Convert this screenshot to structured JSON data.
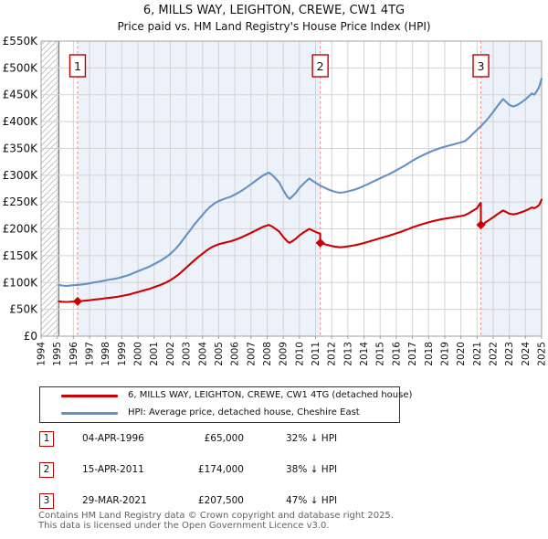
{
  "title": "6, MILLS WAY, LEIGHTON, CREWE, CW1 4TG",
  "subtitle": "Price paid vs. HM Land Registry's House Price Index (HPI)",
  "colors": {
    "property_line": "#cc0000",
    "hpi_line": "#6491c3",
    "sale_dashed_line": "#f09090",
    "shade": "#edf1fa",
    "grid": "#d3d3d3",
    "plot_border": "#a0a0a0",
    "hatch": "#c4c4c4",
    "no_data_divider": "#7a7a7a",
    "marker_box_border": "#bb0000",
    "diamond": "#cc0000",
    "axis_text": "#111111",
    "footer_text": "#636363"
  },
  "chart_data": {
    "type": "line",
    "title": "Price paid vs. HM Land Registry's House Price Index (HPI)",
    "x_axis": {
      "min": 1994,
      "max": 2025,
      "ticks": [
        1994,
        1995,
        1996,
        1997,
        1998,
        1999,
        2000,
        2001,
        2002,
        2003,
        2004,
        2005,
        2006,
        2007,
        2008,
        2009,
        2010,
        2011,
        2012,
        2013,
        2014,
        2015,
        2016,
        2017,
        2018,
        2019,
        2020,
        2021,
        2022,
        2023,
        2024,
        2025
      ]
    },
    "y_axis": {
      "min": 0,
      "max": 550,
      "unit": "GBP thousands",
      "tick_values": [
        0,
        50,
        100,
        150,
        200,
        250,
        300,
        350,
        400,
        450,
        500,
        550
      ],
      "tick_labels": [
        "£0",
        "£50K",
        "£100K",
        "£150K",
        "£200K",
        "£250K",
        "£300K",
        "£350K",
        "£400K",
        "£450K",
        "£500K",
        "£550K"
      ]
    },
    "grid": true,
    "no_data_before": 1995.1,
    "shaded_periods": [
      [
        1996.26,
        2011.29
      ],
      [
        2021.24,
        2025.0
      ]
    ],
    "sales": [
      {
        "label": "1",
        "year": 1996.26,
        "value_k": 65
      },
      {
        "label": "2",
        "year": 2011.29,
        "value_k": 174
      },
      {
        "label": "3",
        "year": 2021.24,
        "value_k": 207.5
      }
    ],
    "series": [
      {
        "name": "6, MILLS WAY, LEIGHTON, CREWE, CW1 4TG (detached house)",
        "color_key": "property_line",
        "points": [
          [
            1995.1,
            64.9
          ],
          [
            1995.3,
            64.2
          ],
          [
            1995.5,
            63.8
          ],
          [
            1995.7,
            63.9
          ],
          [
            1995.9,
            64.4
          ],
          [
            1996.1,
            64.7
          ],
          [
            1996.26,
            65.0
          ],
          [
            1996.5,
            65.6
          ],
          [
            1996.75,
            66.2
          ],
          [
            1997.0,
            67.0
          ],
          [
            1997.25,
            68.1
          ],
          [
            1997.5,
            68.8
          ],
          [
            1997.75,
            69.7
          ],
          [
            1998.0,
            70.8
          ],
          [
            1998.25,
            71.7
          ],
          [
            1998.5,
            72.5
          ],
          [
            1998.75,
            73.6
          ],
          [
            1999.0,
            74.9
          ],
          [
            1999.25,
            76.4
          ],
          [
            1999.5,
            78.0
          ],
          [
            1999.75,
            80.2
          ],
          [
            2000.0,
            82.3
          ],
          [
            2000.25,
            84.4
          ],
          [
            2000.5,
            86.5
          ],
          [
            2000.75,
            88.6
          ],
          [
            2001.0,
            91.2
          ],
          [
            2001.25,
            94.0
          ],
          [
            2001.5,
            96.9
          ],
          [
            2001.75,
            100.2
          ],
          [
            2002.0,
            104.2
          ],
          [
            2002.25,
            109.1
          ],
          [
            2002.5,
            114.6
          ],
          [
            2002.75,
            121.2
          ],
          [
            2003.0,
            128.0
          ],
          [
            2003.25,
            134.8
          ],
          [
            2003.5,
            141.7
          ],
          [
            2003.75,
            147.9
          ],
          [
            2004.0,
            153.8
          ],
          [
            2004.25,
            159.8
          ],
          [
            2004.5,
            164.6
          ],
          [
            2004.75,
            168.4
          ],
          [
            2005.0,
            171.3
          ],
          [
            2005.25,
            173.3
          ],
          [
            2005.5,
            175.2
          ],
          [
            2005.75,
            177.0
          ],
          [
            2006.0,
            179.5
          ],
          [
            2006.25,
            182.2
          ],
          [
            2006.5,
            185.4
          ],
          [
            2006.75,
            189.0
          ],
          [
            2007.0,
            192.6
          ],
          [
            2007.25,
            196.4
          ],
          [
            2007.5,
            200.1
          ],
          [
            2007.75,
            203.8
          ],
          [
            2008.1,
            207.4
          ],
          [
            2008.3,
            204.6
          ],
          [
            2008.5,
            200.4
          ],
          [
            2008.75,
            194.9
          ],
          [
            2009.0,
            185.0
          ],
          [
            2009.25,
            176.7
          ],
          [
            2009.4,
            174.1
          ],
          [
            2009.6,
            178.0
          ],
          [
            2009.8,
            182.2
          ],
          [
            2010.0,
            187.9
          ],
          [
            2010.25,
            193.3
          ],
          [
            2010.5,
            198.0
          ],
          [
            2010.62,
            199.9
          ],
          [
            2010.8,
            197.1
          ],
          [
            2011.0,
            194.5
          ],
          [
            2011.29,
            190.8
          ],
          [
            2011.29,
            174.0
          ],
          [
            2011.5,
            172.2
          ],
          [
            2011.75,
            169.9
          ],
          [
            2012.0,
            168.0
          ],
          [
            2012.25,
            166.7
          ],
          [
            2012.5,
            165.7
          ],
          [
            2012.75,
            166.3
          ],
          [
            2013.0,
            167.3
          ],
          [
            2013.25,
            168.5
          ],
          [
            2013.5,
            169.9
          ],
          [
            2013.75,
            171.7
          ],
          [
            2014.0,
            173.7
          ],
          [
            2014.25,
            175.9
          ],
          [
            2014.5,
            178.1
          ],
          [
            2014.75,
            180.3
          ],
          [
            2015.0,
            182.5
          ],
          [
            2015.25,
            184.7
          ],
          [
            2015.5,
            186.8
          ],
          [
            2015.75,
            189.2
          ],
          [
            2016.0,
            191.7
          ],
          [
            2016.25,
            194.2
          ],
          [
            2016.5,
            196.8
          ],
          [
            2016.75,
            199.8
          ],
          [
            2017.0,
            202.8
          ],
          [
            2017.25,
            205.4
          ],
          [
            2017.5,
            207.8
          ],
          [
            2017.75,
            210.1
          ],
          [
            2018.0,
            212.2
          ],
          [
            2018.25,
            214.3
          ],
          [
            2018.5,
            215.9
          ],
          [
            2018.75,
            217.6
          ],
          [
            2019.0,
            218.9
          ],
          [
            2019.25,
            220.2
          ],
          [
            2019.5,
            221.4
          ],
          [
            2019.75,
            222.8
          ],
          [
            2020.0,
            223.9
          ],
          [
            2020.25,
            225.4
          ],
          [
            2020.5,
            229.3
          ],
          [
            2020.75,
            233.9
          ],
          [
            2021.0,
            238.5
          ],
          [
            2021.12,
            244.2
          ],
          [
            2021.2,
            247.8
          ],
          [
            2021.24,
            248.2
          ],
          [
            2021.24,
            207.5
          ],
          [
            2021.35,
            205.6
          ],
          [
            2021.5,
            211.8
          ],
          [
            2021.75,
            216.4
          ],
          [
            2022.0,
            221.6
          ],
          [
            2022.25,
            227.1
          ],
          [
            2022.5,
            232.1
          ],
          [
            2022.62,
            234.3
          ],
          [
            2022.8,
            231.5
          ],
          [
            2023.0,
            228.4
          ],
          [
            2023.25,
            226.9
          ],
          [
            2023.5,
            228.5
          ],
          [
            2023.75,
            231.1
          ],
          [
            2024.0,
            233.9
          ],
          [
            2024.2,
            236.9
          ],
          [
            2024.4,
            239.9
          ],
          [
            2024.55,
            238.5
          ],
          [
            2024.7,
            241.0
          ],
          [
            2024.85,
            244.6
          ],
          [
            2025.0,
            254.4
          ]
        ]
      },
      {
        "name": "HPI: Average price, detached house, Cheshire East",
        "color_key": "hpi_line",
        "points": [
          [
            1995.1,
            95.5
          ],
          [
            1995.3,
            94.5
          ],
          [
            1995.5,
            93.8
          ],
          [
            1995.7,
            94.0
          ],
          [
            1995.9,
            94.8
          ],
          [
            1996.1,
            95.2
          ],
          [
            1996.26,
            95.6
          ],
          [
            1996.5,
            96.4
          ],
          [
            1996.75,
            97.3
          ],
          [
            1997.0,
            98.5
          ],
          [
            1997.25,
            100.2
          ],
          [
            1997.5,
            101.1
          ],
          [
            1997.75,
            102.5
          ],
          [
            1998.0,
            104.1
          ],
          [
            1998.25,
            105.5
          ],
          [
            1998.5,
            106.6
          ],
          [
            1998.75,
            108.2
          ],
          [
            1999.0,
            110.1
          ],
          [
            1999.25,
            112.3
          ],
          [
            1999.5,
            114.7
          ],
          [
            1999.75,
            118.0
          ],
          [
            2000.0,
            121.1
          ],
          [
            2000.25,
            124.1
          ],
          [
            2000.5,
            127.2
          ],
          [
            2000.75,
            130.3
          ],
          [
            2001.0,
            134.1
          ],
          [
            2001.25,
            138.2
          ],
          [
            2001.5,
            142.5
          ],
          [
            2001.75,
            147.4
          ],
          [
            2002.0,
            153.2
          ],
          [
            2002.25,
            160.4
          ],
          [
            2002.5,
            168.6
          ],
          [
            2002.75,
            178.2
          ],
          [
            2003.0,
            188.3
          ],
          [
            2003.25,
            198.2
          ],
          [
            2003.5,
            208.4
          ],
          [
            2003.75,
            217.5
          ],
          [
            2004.0,
            226.2
          ],
          [
            2004.25,
            235.0
          ],
          [
            2004.5,
            242.0
          ],
          [
            2004.75,
            247.7
          ],
          [
            2005.0,
            251.9
          ],
          [
            2005.25,
            254.9
          ],
          [
            2005.5,
            257.7
          ],
          [
            2005.75,
            260.2
          ],
          [
            2006.0,
            263.9
          ],
          [
            2006.25,
            268.0
          ],
          [
            2006.5,
            272.7
          ],
          [
            2006.75,
            277.9
          ],
          [
            2007.0,
            283.2
          ],
          [
            2007.25,
            288.8
          ],
          [
            2007.5,
            294.3
          ],
          [
            2007.75,
            299.7
          ],
          [
            2008.1,
            305.0
          ],
          [
            2008.3,
            300.9
          ],
          [
            2008.5,
            294.7
          ],
          [
            2008.75,
            286.6
          ],
          [
            2009.0,
            272.0
          ],
          [
            2009.25,
            259.9
          ],
          [
            2009.4,
            256.0
          ],
          [
            2009.6,
            261.8
          ],
          [
            2009.8,
            268.0
          ],
          [
            2010.0,
            276.3
          ],
          [
            2010.25,
            284.2
          ],
          [
            2010.5,
            291.1
          ],
          [
            2010.62,
            293.9
          ],
          [
            2010.8,
            289.8
          ],
          [
            2011.0,
            286.1
          ],
          [
            2011.29,
            280.6
          ],
          [
            2011.5,
            277.7
          ],
          [
            2011.75,
            274.0
          ],
          [
            2012.0,
            270.9
          ],
          [
            2012.25,
            268.8
          ],
          [
            2012.5,
            267.3
          ],
          [
            2012.75,
            268.2
          ],
          [
            2013.0,
            269.9
          ],
          [
            2013.25,
            271.8
          ],
          [
            2013.5,
            274.0
          ],
          [
            2013.75,
            276.9
          ],
          [
            2014.0,
            280.2
          ],
          [
            2014.25,
            283.7
          ],
          [
            2014.5,
            287.2
          ],
          [
            2014.75,
            290.8
          ],
          [
            2015.0,
            294.3
          ],
          [
            2015.25,
            297.9
          ],
          [
            2015.5,
            301.3
          ],
          [
            2015.75,
            305.1
          ],
          [
            2016.0,
            309.2
          ],
          [
            2016.25,
            313.3
          ],
          [
            2016.5,
            317.4
          ],
          [
            2016.75,
            322.2
          ],
          [
            2017.0,
            327.1
          ],
          [
            2017.25,
            331.3
          ],
          [
            2017.5,
            335.1
          ],
          [
            2017.75,
            338.9
          ],
          [
            2018.0,
            342.2
          ],
          [
            2018.25,
            345.7
          ],
          [
            2018.5,
            348.2
          ],
          [
            2018.75,
            350.9
          ],
          [
            2019.0,
            353.1
          ],
          [
            2019.25,
            355.2
          ],
          [
            2019.5,
            357.1
          ],
          [
            2019.75,
            359.3
          ],
          [
            2020.0,
            361.1
          ],
          [
            2020.25,
            363.5
          ],
          [
            2020.5,
            369.9
          ],
          [
            2020.75,
            377.3
          ],
          [
            2021.0,
            384.6
          ],
          [
            2021.24,
            391.5
          ],
          [
            2021.5,
            399.5
          ],
          [
            2021.75,
            408.2
          ],
          [
            2022.0,
            418.1
          ],
          [
            2022.25,
            428.4
          ],
          [
            2022.5,
            437.9
          ],
          [
            2022.62,
            442.0
          ],
          [
            2022.8,
            436.8
          ],
          [
            2023.0,
            430.9
          ],
          [
            2023.25,
            428.0
          ],
          [
            2023.5,
            431.0
          ],
          [
            2023.75,
            435.9
          ],
          [
            2024.0,
            441.3
          ],
          [
            2024.2,
            447.0
          ],
          [
            2024.4,
            452.5
          ],
          [
            2024.55,
            450.0
          ],
          [
            2024.7,
            456.5
          ],
          [
            2024.85,
            464.5
          ],
          [
            2025.0,
            480.0
          ]
        ]
      }
    ],
    "legend_position": "bottom"
  },
  "legend": {
    "items": [
      {
        "label": "6, MILLS WAY, LEIGHTON, CREWE, CW1 4TG (detached house)",
        "color_key": "property_line"
      },
      {
        "label": "HPI: Average price, detached house, Cheshire East",
        "color_key": "hpi_line"
      }
    ]
  },
  "transactions": [
    {
      "num": "1",
      "date": "04-APR-1996",
      "price": "£65,000",
      "hpi_diff": "32% ↓ HPI"
    },
    {
      "num": "2",
      "date": "15-APR-2011",
      "price": "£174,000",
      "hpi_diff": "38% ↓ HPI"
    },
    {
      "num": "3",
      "date": "29-MAR-2021",
      "price": "£207,500",
      "hpi_diff": "47% ↓ HPI"
    }
  ],
  "footer": {
    "line1": "Contains HM Land Registry data © Crown copyright and database right 2025.",
    "line2": "This data is licensed under the Open Government Licence v3.0."
  }
}
